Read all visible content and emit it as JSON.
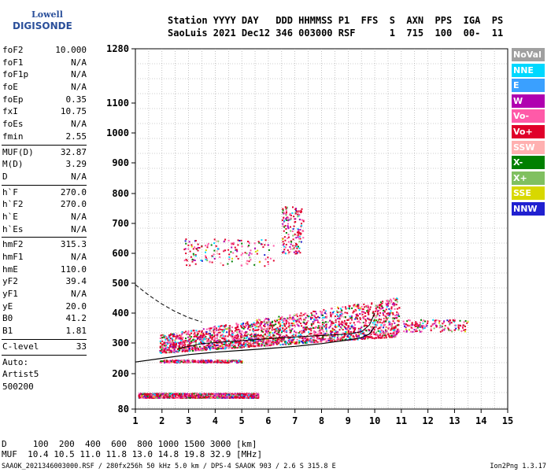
{
  "logo": {
    "line1": "Lowell",
    "line2": "DIGISONDE"
  },
  "header": {
    "line1": "Station YYYY DAY   DDD HHMMSS P1  FFS  S  AXN  PPS  IGA  PS",
    "line2": "SaoLuis 2021 Dec12 346 003000 RSF      1  715  100  00-  11"
  },
  "params": [
    {
      "label": "foF2",
      "value": "10.000"
    },
    {
      "label": "foF1",
      "value": "N/A"
    },
    {
      "label": "foF1p",
      "value": "N/A"
    },
    {
      "label": "foE",
      "value": "N/A"
    },
    {
      "label": "foEp",
      "value": "0.35"
    },
    {
      "label": "fxI",
      "value": "10.75"
    },
    {
      "label": "foEs",
      "value": "N/A"
    },
    {
      "label": "fmin",
      "value": "2.55"
    },
    {
      "sep": true
    },
    {
      "label": "MUF(D)",
      "value": "32.87"
    },
    {
      "label": "M(D)",
      "value": "3.29"
    },
    {
      "label": "D",
      "value": "N/A"
    },
    {
      "sep": true
    },
    {
      "label": "h`F",
      "value": "270.0"
    },
    {
      "label": "h`F2",
      "value": "270.0"
    },
    {
      "label": "h`E",
      "value": "N/A"
    },
    {
      "label": "h`Es",
      "value": "N/A"
    },
    {
      "sep": true
    },
    {
      "label": "hmF2",
      "value": "315.3"
    },
    {
      "label": "hmF1",
      "value": "N/A"
    },
    {
      "label": "hmE",
      "value": "110.0"
    },
    {
      "label": "yF2",
      "value": "39.4"
    },
    {
      "label": "yF1",
      "value": "N/A"
    },
    {
      "label": "yE",
      "value": "20.0"
    },
    {
      "label": "B0",
      "value": "41.2"
    },
    {
      "label": "B1",
      "value": "1.81"
    },
    {
      "sep": true
    },
    {
      "label": "C-level",
      "value": "33"
    },
    {
      "sep": true
    },
    {
      "text": "Auto:"
    },
    {
      "text": "Artist5"
    },
    {
      "text": "500200"
    }
  ],
  "legend": [
    {
      "label": "NoVal",
      "color": "#a0a0a0"
    },
    {
      "label": "NNE",
      "color": "#00d8ff"
    },
    {
      "label": "E",
      "color": "#3aa0ff"
    },
    {
      "label": "W",
      "color": "#b000b0"
    },
    {
      "label": "Vo-",
      "color": "#ff5aa8"
    },
    {
      "label": "Vo+",
      "color": "#e0002a"
    },
    {
      "label": "SSW",
      "color": "#ffb0b0"
    },
    {
      "label": "X-",
      "color": "#008000"
    },
    {
      "label": "X+",
      "color": "#80c060"
    },
    {
      "label": "SSE",
      "color": "#d8d800"
    },
    {
      "label": "NNW",
      "color": "#2020d0"
    }
  ],
  "bottom": {
    "line1": "D     100  200  400  600  800 1000 1500 3000 [km]",
    "line2": "MUF  10.4 10.5 11.0 11.8 13.0 14.8 19.8 32.9 [MHz]"
  },
  "footer": {
    "left": "SAAOK_2021346003000.RSF / 280fx256h 50 kHz 5.0 km / DPS-4 SAAOK 903 / 2.6 S 315.8 E",
    "right": "Ion2Png 1.3.17"
  },
  "chart_data": {
    "type": "scatter",
    "x_ticks": [
      1,
      2,
      3,
      4,
      5,
      6,
      7,
      8,
      9,
      10,
      11,
      12,
      13,
      14,
      15
    ],
    "y_ticks": [
      80,
      200,
      300,
      400,
      500,
      600,
      700,
      800,
      900,
      1000,
      1100,
      1280
    ],
    "xlim": [
      1,
      15
    ],
    "ylim": [
      80,
      1280
    ],
    "y_scale": "non-linear (ionogram virtual height, compressed above 500 km)",
    "grid": true,
    "trace_profile": [
      [
        1.0,
        238
      ],
      [
        2.0,
        250
      ],
      [
        3.0,
        262
      ],
      [
        4.0,
        270
      ],
      [
        5.0,
        276
      ],
      [
        6.0,
        282
      ],
      [
        7.0,
        289
      ],
      [
        8.0,
        298
      ],
      [
        9.0,
        310
      ],
      [
        9.5,
        318
      ],
      [
        9.8,
        330
      ],
      [
        10.0,
        355
      ]
    ],
    "o_trace": [
      [
        2.6,
        282
      ],
      [
        3.5,
        298
      ],
      [
        5.0,
        308
      ],
      [
        6.5,
        318
      ],
      [
        8.0,
        325
      ],
      [
        9.0,
        330
      ],
      [
        9.5,
        338
      ],
      [
        9.8,
        360
      ],
      [
        10.0,
        400
      ]
    ],
    "profile_extrapolation": [
      [
        1.0,
        495
      ],
      [
        1.5,
        460
      ],
      [
        2.0,
        430
      ],
      [
        2.5,
        405
      ],
      [
        3.0,
        385
      ],
      [
        3.5,
        370
      ]
    ],
    "echo_clusters": [
      {
        "x": [
          1.9,
          10.9
        ],
        "y": [
          280,
          440
        ],
        "density": "dense"
      },
      {
        "x": [
          2.8,
          6.2
        ],
        "y": [
          560,
          650
        ],
        "density": "sparse"
      },
      {
        "x": [
          1.1,
          5.6
        ],
        "y": [
          120,
          135
        ],
        "density": "dense"
      },
      {
        "x": [
          1.9,
          5.0
        ],
        "y": [
          238,
          246
        ],
        "density": "medium"
      },
      {
        "x": [
          6.5,
          7.3
        ],
        "y": [
          600,
          760
        ],
        "density": "sparse"
      },
      {
        "x": [
          11.0,
          13.5
        ],
        "y": [
          340,
          380
        ],
        "density": "sparse"
      }
    ]
  }
}
